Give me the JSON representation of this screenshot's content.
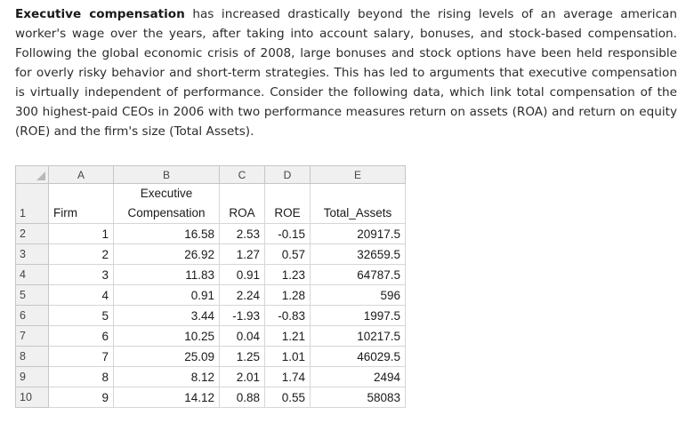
{
  "paragraph": {
    "lead_bold": "Executive compensation",
    "body": " has increased drastically beyond the rising levels of an average american worker's wage over the years, after taking into account salary, bonuses, and stock-based compensation. Following the global economic crisis of 2008, large bonuses and stock options have been held responsible for overly risky behavior and short-term strategies. This has led to arguments that executive compensation is virtually independent of performance. Consider the following data, which link total compensation of the 300 highest-paid CEOs in 2006 with two performance measures return on assets (ROA) and return on equity (ROE) and the firm's size (Total Assets)."
  },
  "spreadsheet": {
    "column_letters": [
      "A",
      "B",
      "C",
      "D",
      "E"
    ],
    "header_row_number": "1",
    "headers": {
      "firm": "Firm",
      "comp_line1": "Executive",
      "comp_line2": "Compensation",
      "roa": "ROA",
      "roe": "ROE",
      "assets": "Total_Assets"
    },
    "rows": [
      {
        "row": "2",
        "firm": "1",
        "comp": "16.58",
        "roa": "2.53",
        "roe": "-0.15",
        "assets": "20917.5"
      },
      {
        "row": "3",
        "firm": "2",
        "comp": "26.92",
        "roa": "1.27",
        "roe": "0.57",
        "assets": "32659.5"
      },
      {
        "row": "4",
        "firm": "3",
        "comp": "11.83",
        "roa": "0.91",
        "roe": "1.23",
        "assets": "64787.5"
      },
      {
        "row": "5",
        "firm": "4",
        "comp": "0.91",
        "roa": "2.24",
        "roe": "1.28",
        "assets": "596"
      },
      {
        "row": "6",
        "firm": "5",
        "comp": "3.44",
        "roa": "-1.93",
        "roe": "-0.83",
        "assets": "1997.5"
      },
      {
        "row": "7",
        "firm": "6",
        "comp": "10.25",
        "roa": "0.04",
        "roe": "1.21",
        "assets": "10217.5"
      },
      {
        "row": "8",
        "firm": "7",
        "comp": "25.09",
        "roa": "1.25",
        "roe": "1.01",
        "assets": "46029.5"
      },
      {
        "row": "9",
        "firm": "8",
        "comp": "8.12",
        "roa": "2.01",
        "roe": "1.74",
        "assets": "2494"
      },
      {
        "row": "10",
        "firm": "9",
        "comp": "14.12",
        "roa": "0.88",
        "roe": "0.55",
        "assets": "58083"
      }
    ]
  }
}
